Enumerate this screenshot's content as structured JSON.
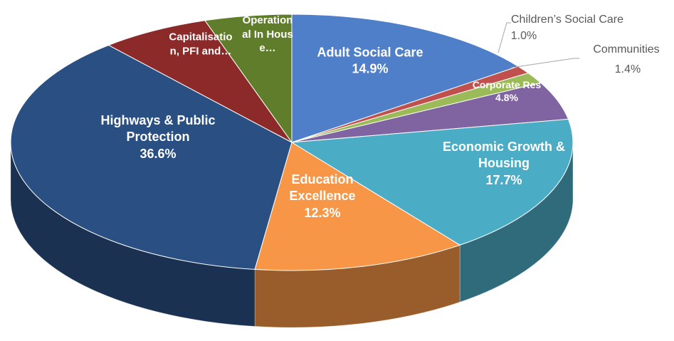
{
  "chart_data": {
    "type": "pie3d",
    "categories": [
      "Adult Social Care",
      "Children’s Social Care",
      "Communities",
      "Corporate Res",
      "Economic Growth & Housing",
      "Education Excellence",
      "Highways & Public Protection",
      "Capitalisation, PFI and…",
      "Operational In House…"
    ],
    "values": [
      14.9,
      1.0,
      1.4,
      4.8,
      17.7,
      12.3,
      36.6,
      6.3,
      5.0
    ],
    "value_labels": [
      "14.9%",
      "1.0%",
      "1.4%",
      "4.8%",
      "17.7%",
      "12.3%",
      "36.6%",
      null,
      null
    ],
    "colors": [
      "#4f7fc9",
      "#c0504d",
      "#9bbb59",
      "#8064a2",
      "#4bacc6",
      "#f79646",
      "#2a4f82",
      "#8c2a2a",
      "#5f7d2a"
    ]
  }
}
